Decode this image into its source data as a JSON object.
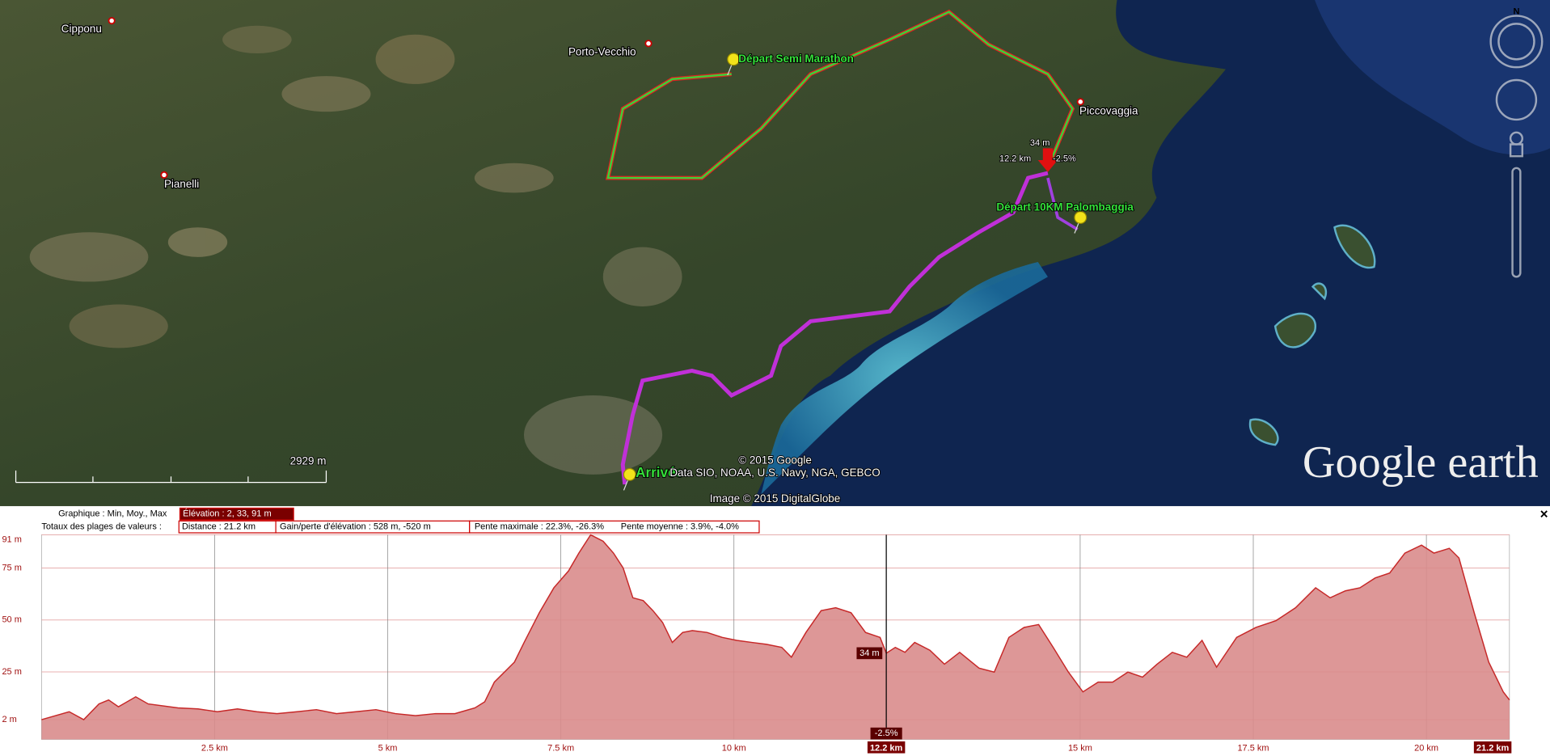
{
  "map": {
    "places": [
      "Cipponu",
      "Porto-Vecchio",
      "Pianelli",
      "Piccovaggia"
    ],
    "markers": [
      "Départ Semi Marathon",
      "Départ 10KM Palombaggia",
      "Arrivée"
    ],
    "copyright": "© 2015 Google",
    "data_credit": "Data SIO, NOAA, U.S. Navy, NGA, GEBCO",
    "image_credit": "Image © 2015 DigitalGlobe",
    "logo": "Google earth",
    "scale_label": "2929  m",
    "compass": "N"
  },
  "profile_header": {
    "graph_label": "Graphique : Min, Moy., Max",
    "elevation": "Élévation : 2, 33, 91 m",
    "totals_label": "Totaux des plages de valeurs :",
    "distance": "Distance : 21.2 km",
    "gain_loss": "Gain/perte d'élévation : 528 m, -520 m",
    "max_slope": "Pente maximale : 22.3%, -26.3%",
    "mean_slope": "Pente moyenne : 3.9%, -4.0%",
    "close": "×"
  },
  "chart_data": {
    "type": "area",
    "x": [
      0,
      0.4,
      0.61,
      0.83,
      0.97,
      1.11,
      1.36,
      1.54,
      1.97,
      2.26,
      2.54,
      2.83,
      3.11,
      3.4,
      3.69,
      3.97,
      4.26,
      4.54,
      4.83,
      5.11,
      5.4,
      5.69,
      5.97,
      6.26,
      6.4,
      6.54,
      6.83,
      6.97,
      7.19,
      7.4,
      7.61,
      7.76,
      7.93,
      8.11,
      8.26,
      8.4,
      8.54,
      8.69,
      8.83,
      8.97,
      9.11,
      9.26,
      9.4,
      9.61,
      9.83,
      10.04,
      10.26,
      10.47,
      10.69,
      10.83,
      11.04,
      11.26,
      11.47,
      11.69,
      11.9,
      12.11,
      12.2,
      12.33,
      12.47,
      12.61,
      12.83,
      13.04,
      13.26,
      13.54,
      13.76,
      13.97,
      14.19,
      14.4,
      14.61,
      14.83,
      15.04,
      15.26,
      15.47,
      15.69,
      15.9,
      16.11,
      16.33,
      16.54,
      16.76,
      16.97,
      17.26,
      17.54,
      17.83,
      18.11,
      18.4,
      18.61,
      18.83,
      19.04,
      19.26,
      19.47,
      19.69,
      19.93,
      20.11,
      20.33,
      20.47,
      20.69,
      20.9,
      21.11,
      21.2
    ],
    "values": [
      2,
      5.8,
      2,
      9.6,
      11.5,
      8.2,
      13,
      9.6,
      7.7,
      7.2,
      5.8,
      7.2,
      5.8,
      4.9,
      5.8,
      6.8,
      4.9,
      5.8,
      6.8,
      4.9,
      3.9,
      4.9,
      4.9,
      7.7,
      10.6,
      20.1,
      29.7,
      39.2,
      53.5,
      65.5,
      73.6,
      82.2,
      91,
      87.9,
      82.2,
      75,
      60.7,
      59.3,
      54.5,
      48.8,
      39.2,
      44,
      44.9,
      44,
      41.6,
      40.2,
      39.2,
      38.3,
      36.8,
      32.1,
      44,
      54.5,
      55.9,
      53.5,
      44,
      41.6,
      34,
      36.8,
      34.4,
      39.2,
      35.4,
      28.7,
      34.4,
      26.8,
      24.9,
      41.6,
      46.4,
      47.8,
      36.8,
      24.9,
      15.4,
      20.1,
      20.1,
      24.9,
      22.5,
      28.7,
      34.4,
      32.1,
      40.2,
      27.3,
      41.6,
      46.4,
      49.7,
      55.9,
      65.5,
      60.7,
      64,
      65.5,
      70.2,
      72.6,
      82.2,
      86,
      82.2,
      84.5,
      79.8,
      53.5,
      29.7,
      15.4,
      11.5
    ],
    "color": "#c62828",
    "fill": "#d98c8c",
    "xlim": [
      0,
      21.2
    ],
    "ylim": [
      -7.5,
      91
    ],
    "xticks": [
      {
        "value": 2.5,
        "label": "2.5 km"
      },
      {
        "value": 5,
        "label": "5 km"
      },
      {
        "value": 7.5,
        "label": "7.5 km"
      },
      {
        "value": 10,
        "label": "10 km"
      },
      {
        "value": 15,
        "label": "15 km"
      },
      {
        "value": 17.5,
        "label": "17.5 km"
      },
      {
        "value": 20,
        "label": "20 km"
      },
      {
        "value": 21.2,
        "label": "21.2 km"
      }
    ],
    "yticks": [
      {
        "value": 2,
        "label": "2 m"
      },
      {
        "value": 25,
        "label": "25 m"
      },
      {
        "value": 50,
        "label": "50 m"
      },
      {
        "value": 75,
        "label": "75 m"
      },
      {
        "value": 91,
        "label": "91 m"
      }
    ],
    "grid": true,
    "cursor": {
      "x": 12.2,
      "label": "12.2 km",
      "value": 34,
      "value_label": "34 m",
      "slope_label": "-2.5%"
    }
  }
}
